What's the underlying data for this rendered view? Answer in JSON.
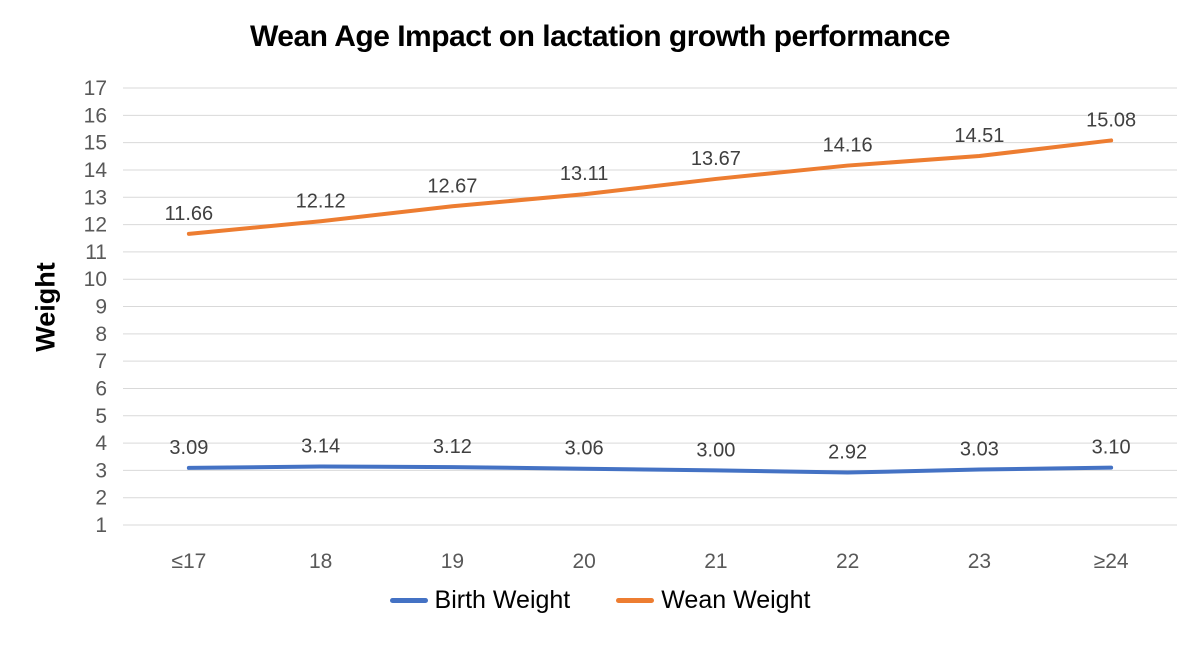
{
  "title": "Wean Age Impact on lactation growth performance",
  "chart_data": {
    "type": "line",
    "title": "Wean Age Impact on lactation growth performance",
    "xlabel": "",
    "ylabel": "Weight",
    "categories": [
      "≤17",
      "18",
      "19",
      "20",
      "21",
      "22",
      "23",
      "≥24"
    ],
    "series": [
      {
        "name": "Birth Weight",
        "color": "#4472C4",
        "values": [
          3.09,
          3.14,
          3.12,
          3.06,
          3.0,
          2.92,
          3.03,
          3.1
        ],
        "labels": [
          "3.09",
          "3.14",
          "3.12",
          "3.06",
          "3.00",
          "2.92",
          "3.03",
          "3.10"
        ]
      },
      {
        "name": "Wean Weight",
        "color": "#ED7D31",
        "values": [
          11.66,
          12.12,
          12.67,
          13.11,
          13.67,
          14.16,
          14.51,
          15.08
        ],
        "labels": [
          "11.66",
          "12.12",
          "12.67",
          "13.11",
          "13.67",
          "14.16",
          "14.51",
          "15.08"
        ]
      }
    ],
    "ylim": [
      1,
      17
    ],
    "ytick_step": 1,
    "grid": true,
    "gridline_color": "#D9D9D9",
    "tick_label_color": "#595959",
    "data_label_color": "#404040",
    "legend_position": "bottom"
  }
}
